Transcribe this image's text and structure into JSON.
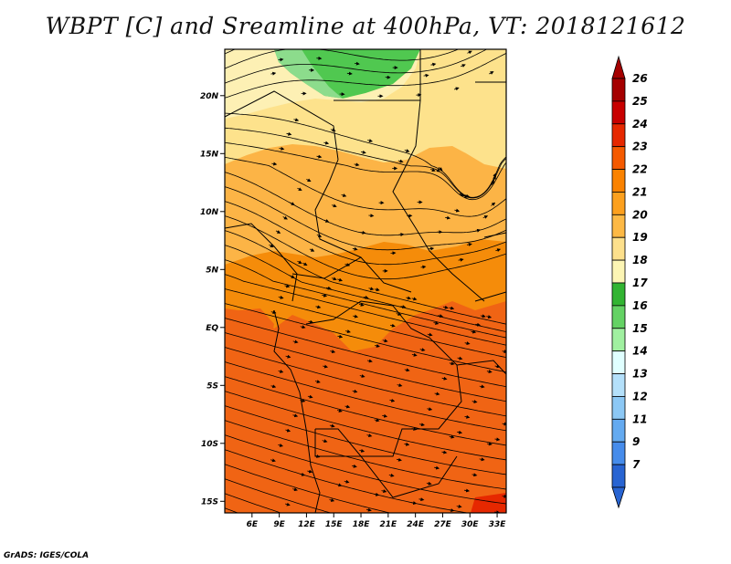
{
  "title": "WBPT [C] and Sreamline at 400hPa, VT: 2018121612",
  "credit": "GrADS: IGES/COLA",
  "map": {
    "lat_ticks": [
      "20N",
      "15N",
      "10N",
      "5N",
      "EQ",
      "5S",
      "10S",
      "15S"
    ],
    "lon_ticks": [
      "6E",
      "9E",
      "12E",
      "15E",
      "18E",
      "21E",
      "24E",
      "27E",
      "30E",
      "33E"
    ],
    "lon_range": [
      3,
      34
    ],
    "lat_range": [
      -16,
      24
    ]
  },
  "colorbar": {
    "labels": [
      "26",
      "25",
      "24",
      "23",
      "22",
      "21",
      "20",
      "19",
      "18",
      "17",
      "16",
      "15",
      "14",
      "13",
      "12",
      "11",
      "9",
      "7"
    ],
    "colors": [
      "#a50000",
      "#c80000",
      "#e62800",
      "#f55a00",
      "#fa8200",
      "#fca01e",
      "#fdb945",
      "#fde08c",
      "#fcf5b4",
      "#32b432",
      "#64d264",
      "#a0f0a0",
      "#e0ffff",
      "#b4e0fa",
      "#8cc8f5",
      "#64aaf0",
      "#468ceb",
      "#2864d2"
    ]
  },
  "field_colors": {
    "deep_orange": "#f06414",
    "orange": "#f58c0a",
    "light_orange": "#fcb446",
    "pale_yellow": "#fde28c",
    "cream": "#fdf0b4",
    "green_mid": "#50c850",
    "green_light": "#8cdc8c"
  }
}
